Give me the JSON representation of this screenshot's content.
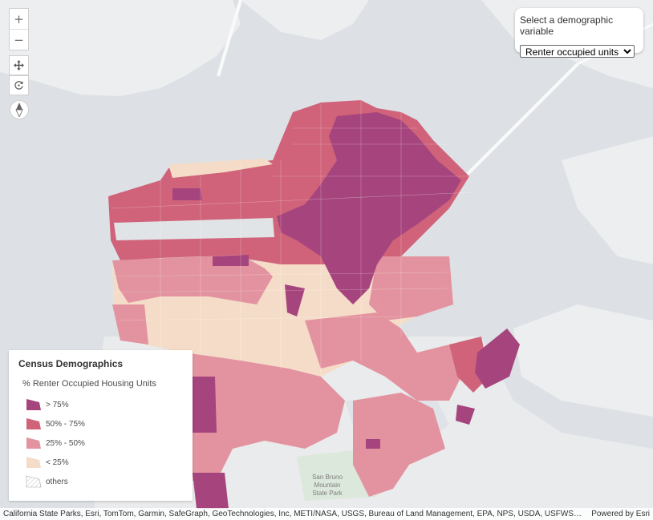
{
  "map": {
    "park_label_lines": [
      "San Bruno",
      "Mountain",
      "State Park"
    ]
  },
  "controls": {
    "zoom_in": "+",
    "zoom_out": "−"
  },
  "variable_panel": {
    "title": "Select a demographic variable",
    "selected": "Renter occupied units"
  },
  "legend": {
    "title": "Census Demographics",
    "subtitle": "% Renter Occupied Housing Units",
    "items": [
      {
        "label": "> 75%",
        "color": "#a6457d"
      },
      {
        "label": "50% - 75%",
        "color": "#d0637a"
      },
      {
        "label": "25% - 50%",
        "color": "#e3939f"
      },
      {
        "label": "< 25%",
        "color": "#f5dcc8"
      },
      {
        "label": "others",
        "color": "#ffffff"
      }
    ]
  },
  "attribution": {
    "text": "California State Parks, Esri, TomTom, Garmin, SafeGraph, GeoTechnologies, Inc, METI/NASA, USGS, Bureau of Land Management, EPA, NPS, USDA, USFWS | US Bureau of the ...",
    "powered_by": "Powered by Esri"
  }
}
